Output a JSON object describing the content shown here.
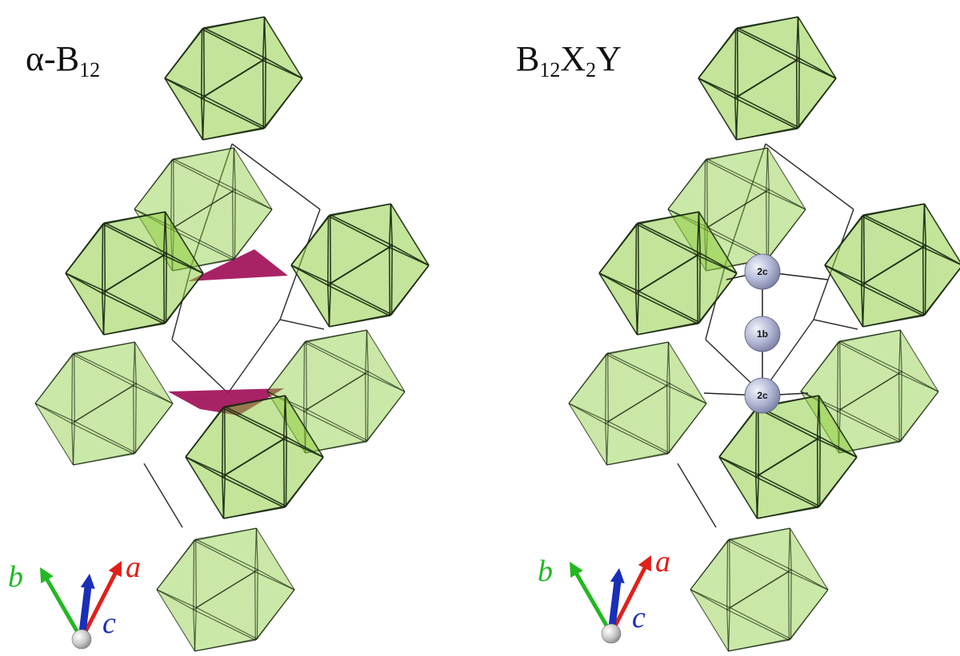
{
  "panels": [
    {
      "id": "left",
      "title_main": "α-B",
      "title_sub": "12",
      "atoms": []
    },
    {
      "id": "right",
      "title_parts": [
        "B",
        "12",
        "X",
        "2",
        "Y"
      ],
      "atoms": [
        {
          "label": "2c"
        },
        {
          "label": "1b"
        },
        {
          "label": "2c"
        }
      ]
    }
  ],
  "axes": {
    "a": {
      "label": "a",
      "color": "#e0201b"
    },
    "b": {
      "label": "b",
      "color": "#22b822"
    },
    "c": {
      "label": "c",
      "color": "#1a2fb8"
    }
  },
  "colors": {
    "icosahedron_fill": "#8ccc3c",
    "icosahedron_edge": "#1a2a10",
    "plane": "#a3175e",
    "atom": "#aab0d0",
    "cell_line": "#333333"
  }
}
